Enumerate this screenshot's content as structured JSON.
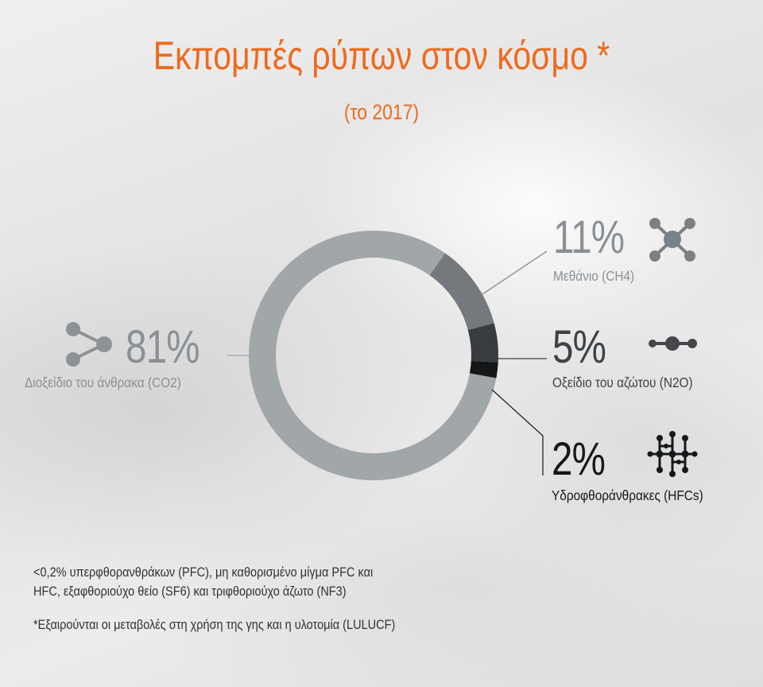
{
  "title": "Εκπομπές ρύπων στον κόσμο *",
  "subtitle": "(το 2017)",
  "chart_data": {
    "type": "pie",
    "title": "Εκπομπές ρύπων στον κόσμο *",
    "subtitle": "(το 2017)",
    "categories": [
      "Διοξείδιο του άνθρακα (CO2)",
      "Μεθάνιο (CH4)",
      "Οξείδιο του αζώτου (N2O)",
      "Υδροφθοράνθρακες (HFCs)"
    ],
    "values": [
      81,
      11,
      5,
      2
    ],
    "value_labels": [
      "81%",
      "11%",
      "5%",
      "2%"
    ],
    "colors": [
      "#a1a6a9",
      "#75797d",
      "#393c3f",
      "#141618"
    ],
    "legend": "labels beside slices"
  },
  "icons": {
    "co2": "share-nodes-icon",
    "ch4": "molecule-x-icon",
    "n2o": "chain-dots-icon",
    "hfcs": "lattice-molecule-icon"
  },
  "notes": {
    "line1": "<0,2% υπερφθορανθράκων (PFC), μη καθορισμένο μίγμα PFC και",
    "line2": "HFC, εξαφθοριούχο θείο (SF6) και τριφθοριούχο άζωτο (NF3)",
    "footnote": "*Εξαιρούνται οι μεταβολές στη χρήση της γης και η υλοτομία (LULUCF)"
  }
}
